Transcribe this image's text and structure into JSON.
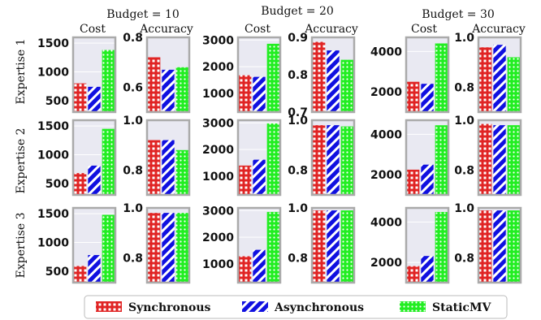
{
  "colors": {
    "synchronous": "#e02424",
    "asynchronous": "#1010e0",
    "staticmv": "#22ee22",
    "panel_bg": "#e9e9f2",
    "panel_border": "#aaaaaa"
  },
  "chart_data": {
    "type": "bar",
    "grid": true,
    "series_names": [
      "Synchronous",
      "Asynchronous",
      "StaticMV"
    ],
    "column_titles": [
      "Budget = 10",
      "Budget = 20",
      "Budget = 30"
    ],
    "row_labels": [
      "Expertise 1",
      "Expertise 2",
      "Expertise 3"
    ],
    "metric_labels": [
      "Cost",
      "Accuracy"
    ],
    "legend": {
      "placement": "bottom",
      "entries": [
        "Synchronous",
        "Asynchronous",
        "StaticMV"
      ]
    },
    "panels": [
      {
        "row": 0,
        "budget": 0,
        "metric": "cost",
        "ylim": [
          300,
          1600
        ],
        "ticks": [
          "500",
          "1000",
          "1500"
        ],
        "values": [
          800,
          740,
          1380
        ]
      },
      {
        "row": 0,
        "budget": 0,
        "metric": "accuracy",
        "ylim": [
          0.5,
          0.8
        ],
        "ticks": [
          "0.6",
          "0.8"
        ],
        "values": [
          0.72,
          0.67,
          0.68
        ]
      },
      {
        "row": 0,
        "budget": 1,
        "metric": "cost",
        "ylim": [
          300,
          3100
        ],
        "ticks": [
          "1000",
          "2000",
          "3000"
        ],
        "values": [
          1680,
          1620,
          2860
        ]
      },
      {
        "row": 0,
        "budget": 1,
        "metric": "accuracy",
        "ylim": [
          0.7,
          0.9
        ],
        "ticks": [
          "0.7",
          "0.8",
          "0.9"
        ],
        "values": [
          0.888,
          0.865,
          0.84
        ]
      },
      {
        "row": 0,
        "budget": 2,
        "metric": "cost",
        "ylim": [
          1000,
          4700
        ],
        "ticks": [
          "2000",
          "4000"
        ],
        "values": [
          2500,
          2400,
          4400
        ]
      },
      {
        "row": 0,
        "budget": 2,
        "metric": "accuracy",
        "ylim": [
          0.7,
          1.0
        ],
        "ticks": [
          "0.8",
          "1.0"
        ],
        "values": [
          0.96,
          0.97,
          0.92
        ]
      },
      {
        "row": 1,
        "budget": 0,
        "metric": "cost",
        "ylim": [
          300,
          1600
        ],
        "ticks": [
          "500",
          "1000",
          "1500"
        ],
        "values": [
          680,
          810,
          1450
        ]
      },
      {
        "row": 1,
        "budget": 0,
        "metric": "accuracy",
        "ylim": [
          0.7,
          1.0
        ],
        "ticks": [
          "0.8",
          "1.0"
        ],
        "values": [
          0.92,
          0.92,
          0.88
        ]
      },
      {
        "row": 1,
        "budget": 1,
        "metric": "cost",
        "ylim": [
          300,
          3100
        ],
        "ticks": [
          "1000",
          "2000",
          "3000"
        ],
        "values": [
          1400,
          1620,
          2980
        ]
      },
      {
        "row": 1,
        "budget": 1,
        "metric": "accuracy",
        "ylim": [
          0.7,
          1.0
        ],
        "ticks": [
          "0.8",
          "1.0"
        ],
        "values": [
          0.98,
          0.98,
          0.975
        ]
      },
      {
        "row": 1,
        "budget": 2,
        "metric": "cost",
        "ylim": [
          1000,
          4700
        ],
        "ticks": [
          "2000",
          "4000"
        ],
        "values": [
          2250,
          2500,
          4450
        ]
      },
      {
        "row": 1,
        "budget": 2,
        "metric": "accuracy",
        "ylim": [
          0.7,
          1.0
        ],
        "ticks": [
          "0.8",
          "1.0"
        ],
        "values": [
          0.985,
          0.98,
          0.98
        ]
      },
      {
        "row": 2,
        "budget": 0,
        "metric": "cost",
        "ylim": [
          300,
          1600
        ],
        "ticks": [
          "500",
          "1000",
          "1500"
        ],
        "values": [
          590,
          780,
          1480
        ]
      },
      {
        "row": 2,
        "budget": 0,
        "metric": "accuracy",
        "ylim": [
          0.7,
          1.0
        ],
        "ticks": [
          "0.8",
          "1.0"
        ],
        "values": [
          0.98,
          0.98,
          0.98
        ]
      },
      {
        "row": 2,
        "budget": 1,
        "metric": "cost",
        "ylim": [
          300,
          3100
        ],
        "ticks": [
          "1000",
          "2000",
          "3000"
        ],
        "values": [
          1290,
          1530,
          2950
        ]
      },
      {
        "row": 2,
        "budget": 1,
        "metric": "accuracy",
        "ylim": [
          0.7,
          1.0
        ],
        "ticks": [
          "0.8",
          "1.0"
        ],
        "values": [
          0.99,
          0.99,
          0.99
        ]
      },
      {
        "row": 2,
        "budget": 2,
        "metric": "cost",
        "ylim": [
          1000,
          4700
        ],
        "ticks": [
          "2000",
          "4000"
        ],
        "values": [
          1820,
          2320,
          4500
        ]
      },
      {
        "row": 2,
        "budget": 2,
        "metric": "accuracy",
        "ylim": [
          0.7,
          1.0
        ],
        "ticks": [
          "0.8",
          "1.0"
        ],
        "values": [
          0.99,
          0.99,
          0.99
        ]
      }
    ]
  }
}
